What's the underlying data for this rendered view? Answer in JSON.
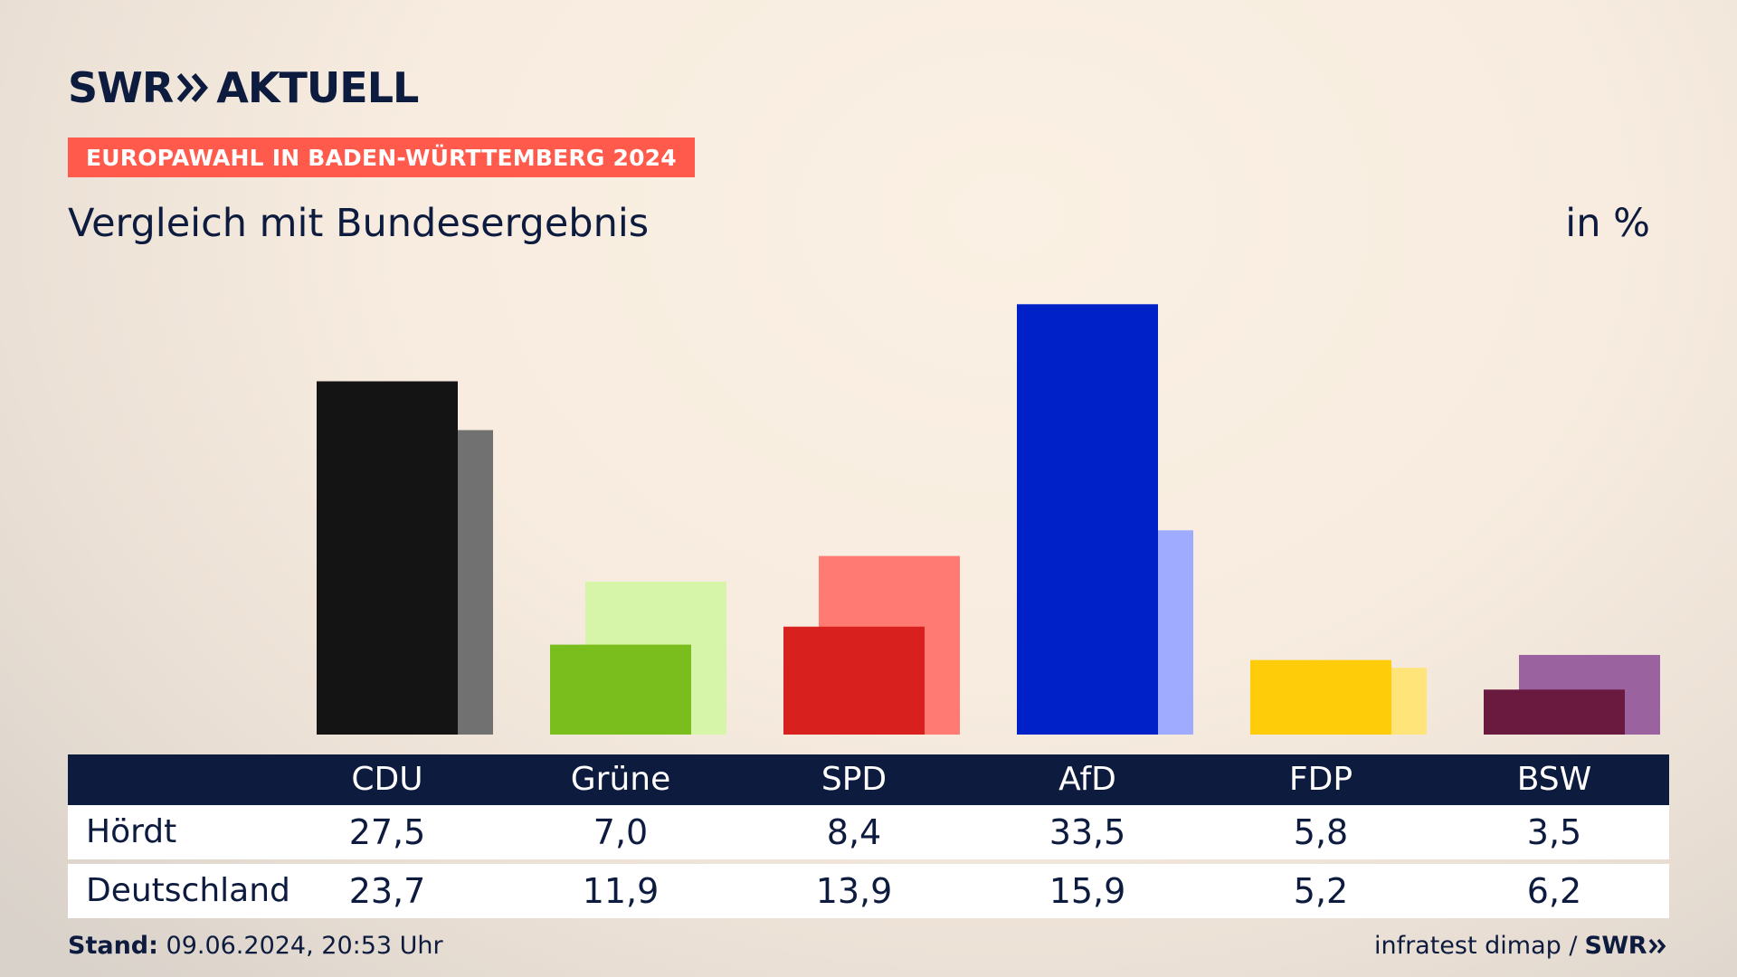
{
  "header": {
    "brand": "SWR",
    "product": "AKTUELL",
    "tag": "EUROPAWAHL IN BADEN-WÜRTTEMBERG 2024",
    "subtitle": "Vergleich mit Bundesergebnis",
    "unit": "in %"
  },
  "chart_data": {
    "type": "bar",
    "categories": [
      "CDU",
      "Grüne",
      "SPD",
      "AfD",
      "FDP",
      "BSW"
    ],
    "series": [
      {
        "name": "Hördt",
        "values": [
          27.5,
          7.0,
          8.4,
          33.5,
          5.8,
          3.5
        ],
        "colors": [
          "#141414",
          "#7abe1e",
          "#d8201e",
          "#0020c8",
          "#ffcc0a",
          "#6a1a3e"
        ]
      },
      {
        "name": "Deutschland",
        "values": [
          23.7,
          11.9,
          13.9,
          15.9,
          5.2,
          6.2
        ],
        "colors": [
          "#717171",
          "#d7f5a8",
          "#ff7a72",
          "#9eabff",
          "#ffe47a",
          "#9b62a0"
        ]
      }
    ],
    "value_labels": [
      [
        "27,5",
        "7,0",
        "8,4",
        "33,5",
        "5,8",
        "3,5"
      ],
      [
        "23,7",
        "11,9",
        "13,9",
        "15,9",
        "5,2",
        "6,2"
      ]
    ],
    "ylim": [
      0,
      35
    ],
    "grid": false,
    "legend": "table-below"
  },
  "footer": {
    "stand_label": "Stand:",
    "stand_value": "09.06.2024, 20:53 Uhr",
    "source": "infratest dimap /",
    "source_brand": "SWR"
  },
  "colors": {
    "navy": "#0d1b3e",
    "accent": "#ff5a4b"
  }
}
